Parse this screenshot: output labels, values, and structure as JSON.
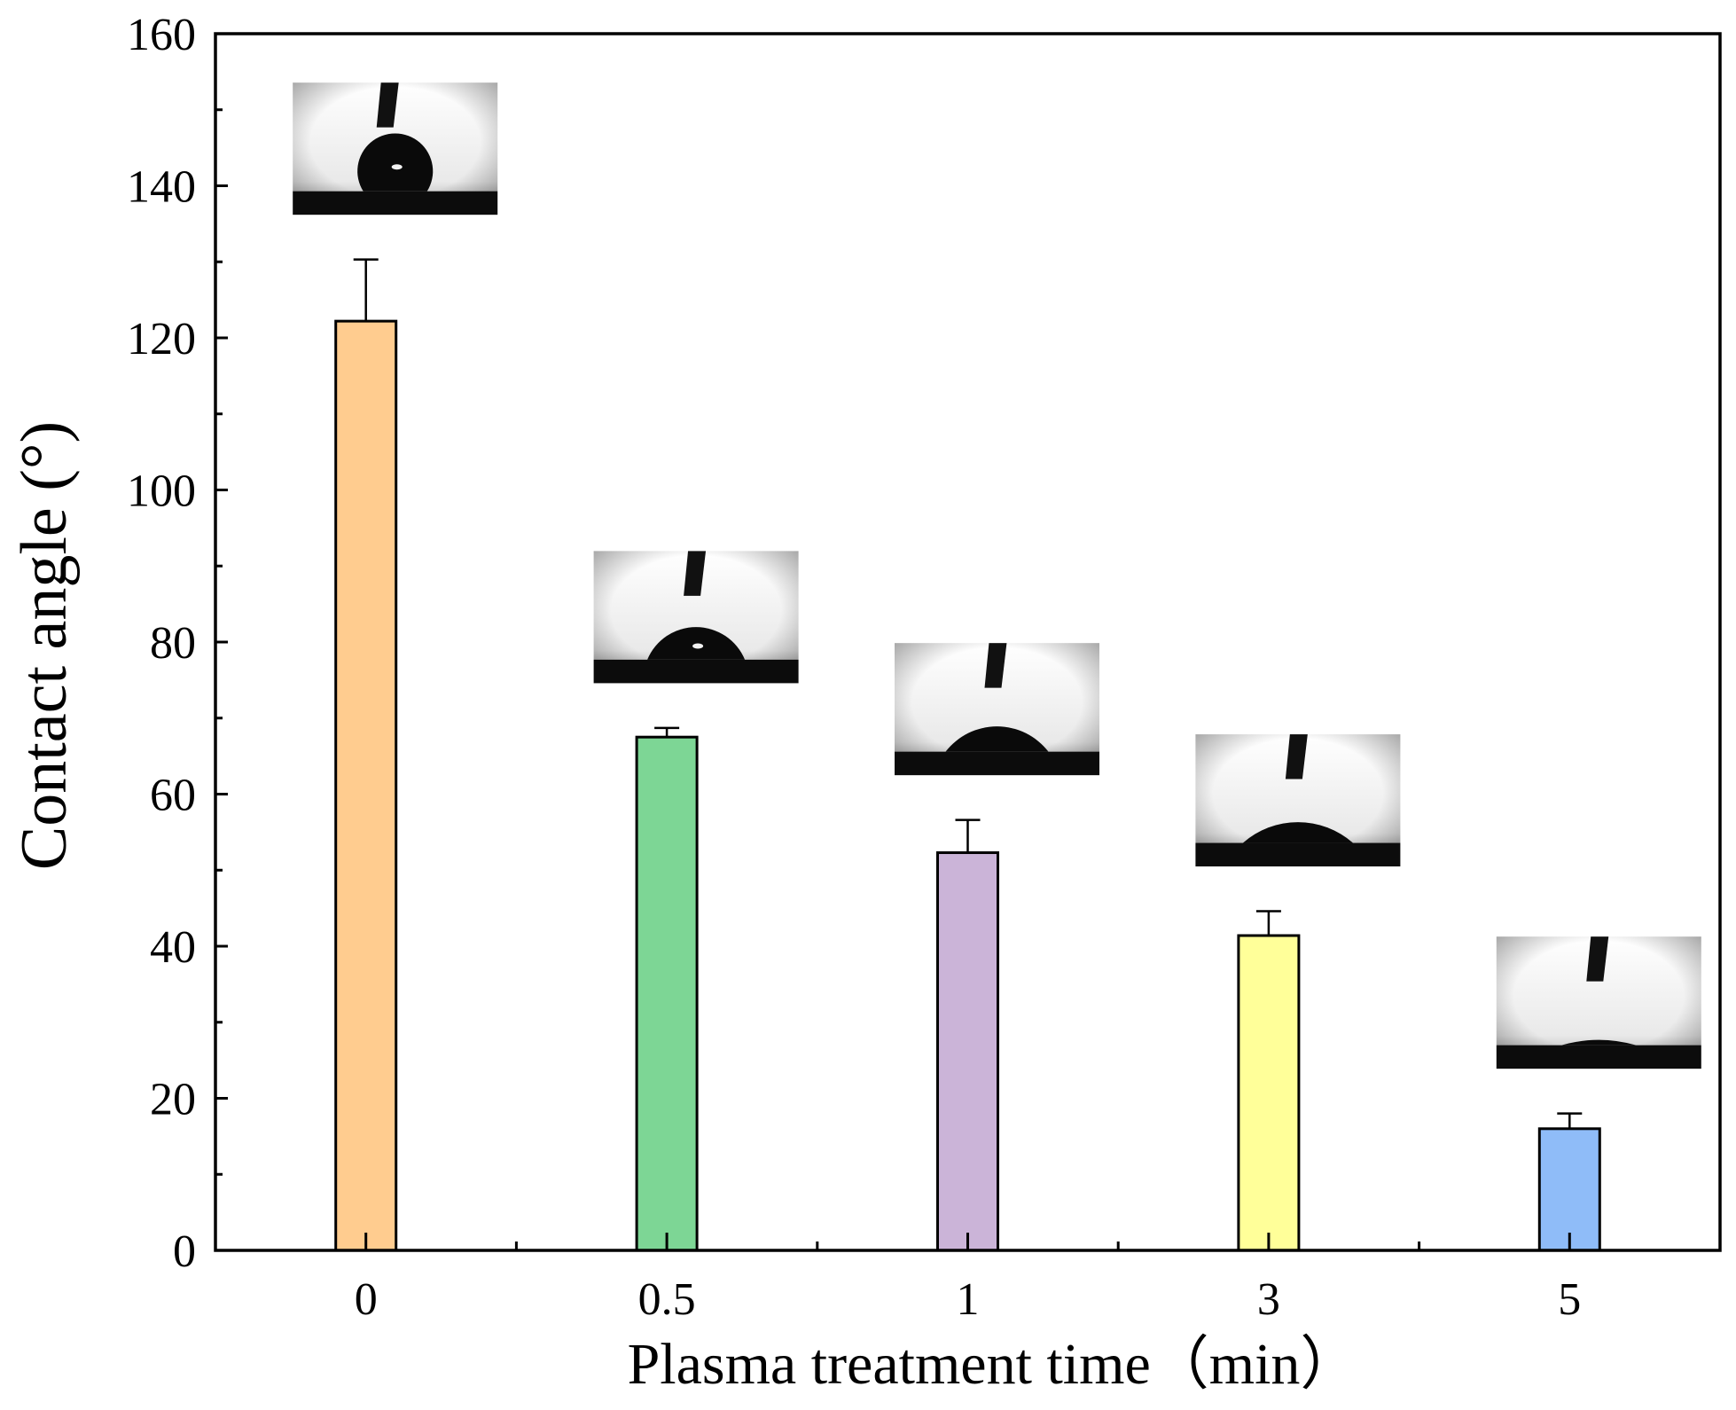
{
  "chart_data": {
    "type": "bar",
    "title": "",
    "xlabel": "Plasma treatment time（min）",
    "ylabel": "Contact angle (°)",
    "categories": [
      "0",
      "0.5",
      "1",
      "3",
      "5"
    ],
    "values": [
      122.2,
      67.5,
      52.3,
      41.4,
      16.0
    ],
    "errors": [
      8.1,
      1.2,
      4.3,
      3.2,
      2.0
    ],
    "colors": [
      "#FFCC8F",
      "#7DD695",
      "#CBB4D8",
      "#FFFF99",
      "#8FBCF8"
    ],
    "ylim": [
      0,
      160
    ],
    "yticks": [
      0,
      20,
      40,
      60,
      80,
      100,
      120,
      140,
      160
    ],
    "grid": false,
    "legend": "none",
    "insets": [
      {
        "category": "0",
        "description": "droplet-photo-high-angle",
        "droplet_angle_deg": 122.2
      },
      {
        "category": "0.5",
        "description": "droplet-photo",
        "droplet_angle_deg": 67.5
      },
      {
        "category": "1",
        "description": "droplet-photo",
        "droplet_angle_deg": 52.3
      },
      {
        "category": "3",
        "description": "droplet-photo",
        "droplet_angle_deg": 41.4
      },
      {
        "category": "5",
        "description": "droplet-photo-low-angle",
        "droplet_angle_deg": 16.0
      }
    ]
  }
}
